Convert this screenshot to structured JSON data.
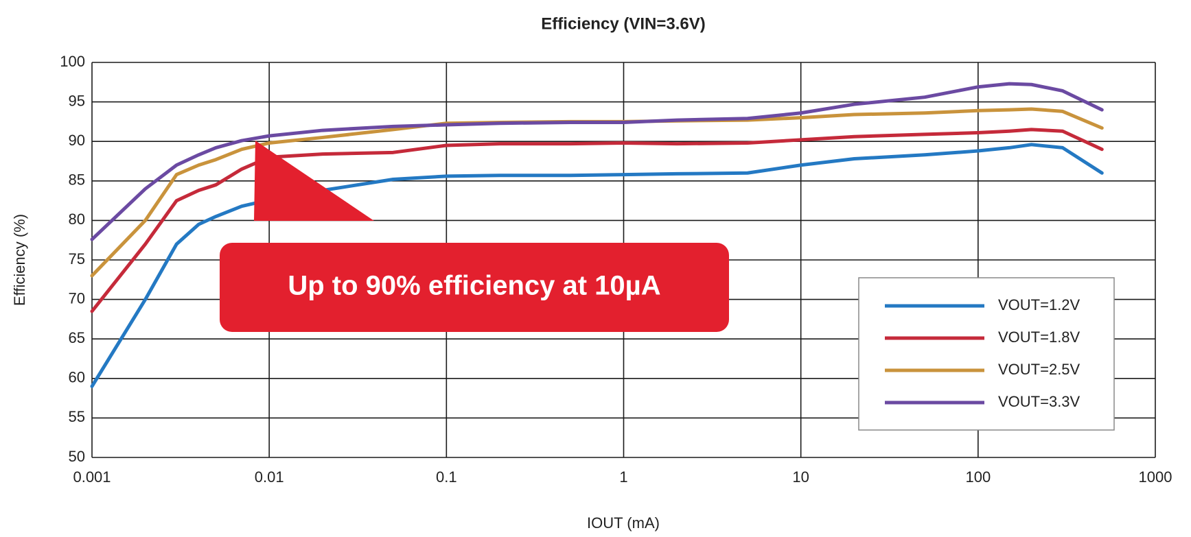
{
  "chart_data": {
    "type": "line",
    "title": "Efficiency (VIN=3.6V)",
    "xlabel": "IOUT (mA)",
    "ylabel": "Efficiency (%)",
    "annotation": "Up to 90% efficiency at 10µA",
    "xscale": "log",
    "xlim": [
      0.001,
      1000
    ],
    "xticks": [
      0.001,
      0.01,
      0.1,
      1,
      10,
      100,
      1000
    ],
    "ylim": [
      50,
      100
    ],
    "yticks": [
      50,
      55,
      60,
      65,
      70,
      75,
      80,
      85,
      90,
      95,
      100
    ],
    "grid": true,
    "legend": "lower right",
    "x": [
      0.001,
      0.002,
      0.003,
      0.004,
      0.005,
      0.007,
      0.01,
      0.02,
      0.05,
      0.1,
      0.2,
      0.5,
      1,
      2,
      5,
      10,
      20,
      50,
      100,
      150,
      200,
      300,
      500
    ],
    "series": [
      {
        "name": "VOUT=1.2V",
        "color": "#2479c3",
        "values": [
          59,
          70,
          77,
          79.5,
          80.5,
          81.8,
          82.6,
          83.8,
          85.2,
          85.6,
          85.7,
          85.7,
          85.8,
          85.9,
          86,
          87,
          87.8,
          88.3,
          88.8,
          89.2,
          89.6,
          89.2,
          86
        ]
      },
      {
        "name": "VOUT=1.8V",
        "color": "#c52a3a",
        "values": [
          68.5,
          77,
          82.5,
          83.8,
          84.5,
          86.5,
          88,
          88.4,
          88.6,
          89.5,
          89.7,
          89.7,
          89.8,
          89.7,
          89.8,
          90.2,
          90.6,
          90.9,
          91.1,
          91.3,
          91.5,
          91.3,
          89
        ]
      },
      {
        "name": "VOUT=2.5V",
        "color": "#c9933c",
        "values": [
          73,
          80,
          85.8,
          87,
          87.7,
          89,
          89.8,
          90.5,
          91.5,
          92.3,
          92.4,
          92.5,
          92.5,
          92.6,
          92.7,
          93,
          93.4,
          93.6,
          93.9,
          94,
          94.1,
          93.8,
          91.7
        ]
      },
      {
        "name": "VOUT=3.3V",
        "color": "#6b4aa2",
        "values": [
          77.6,
          84,
          87,
          88.3,
          89.2,
          90.1,
          90.7,
          91.4,
          91.9,
          92.1,
          92.3,
          92.4,
          92.4,
          92.7,
          92.9,
          93.6,
          94.7,
          95.6,
          96.9,
          97.3,
          97.2,
          96.4,
          94
        ]
      }
    ]
  }
}
